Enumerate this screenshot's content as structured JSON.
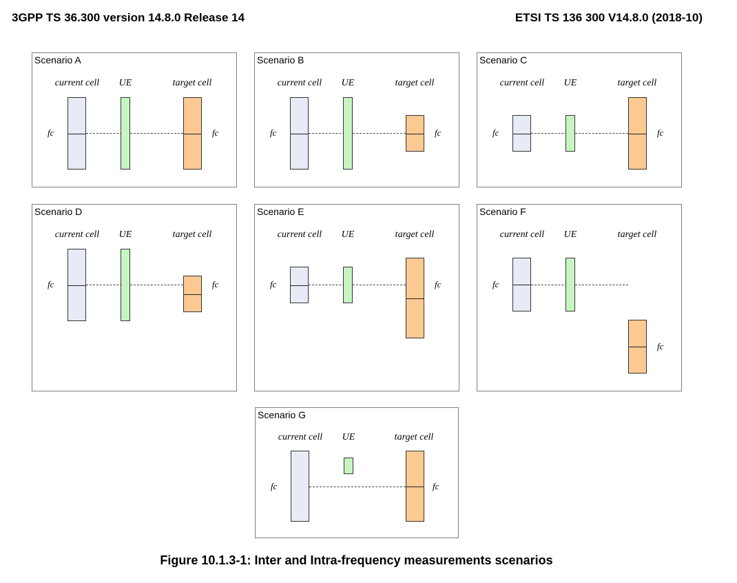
{
  "header": {
    "left": "3GPP TS 36.300 version 14.8.0 Release 14",
    "right": "ETSI TS 136 300 V14.8.0 (2018-10)"
  },
  "labels": {
    "current": "current cell",
    "ue": "UE",
    "target": "target cell",
    "fc": "fc"
  },
  "scenarios": [
    {
      "title": "Scenario A"
    },
    {
      "title": "Scenario B"
    },
    {
      "title": "Scenario C"
    },
    {
      "title": "Scenario D"
    },
    {
      "title": "Scenario E"
    },
    {
      "title": "Scenario F"
    },
    {
      "title": "Scenario G"
    }
  ],
  "colors": {
    "current_cell": "#e6ebf5",
    "ue": "#c7f5c2",
    "target_cell": "#fcc993",
    "border": "#7f7f7f"
  },
  "caption": "Figure 10.1.3-1: Inter and Intra-frequency measurements scenarios"
}
